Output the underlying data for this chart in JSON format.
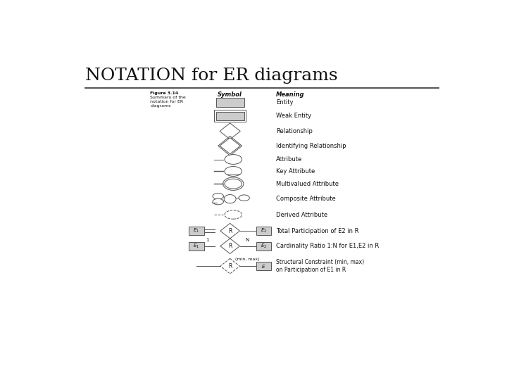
{
  "title": "NOTATION for ER diagrams",
  "bg_color": "#ffffff",
  "title_fontsize": 18,
  "title_font": "serif",
  "fig_label": "Figure 3.14",
  "fig_desc": "Summary of the\nnotation for ER\ndiagrams",
  "col_symbol": "Symbol",
  "col_meaning": "Meaning",
  "rows": [
    {
      "label": "Entity"
    },
    {
      "label": "Weak Entity"
    },
    {
      "label": "Relationship"
    },
    {
      "label": "Identifying Relationship"
    },
    {
      "label": "Attribute"
    },
    {
      "label": "Key Attribute"
    },
    {
      "label": "Multivalued Attribute"
    },
    {
      "label": "Composite Attribute"
    },
    {
      "label": "Derived Attribute"
    },
    {
      "label": "Total Participation of E2 in R"
    },
    {
      "label": "Cardinality Ratio 1:N for E1,E2 in R"
    },
    {
      "label": "Structural Constraint (min, max)\non Participation of E1 in R"
    }
  ],
  "gray_fill": "#cccccc",
  "edge_color": "#555555",
  "text_color": "#111111"
}
